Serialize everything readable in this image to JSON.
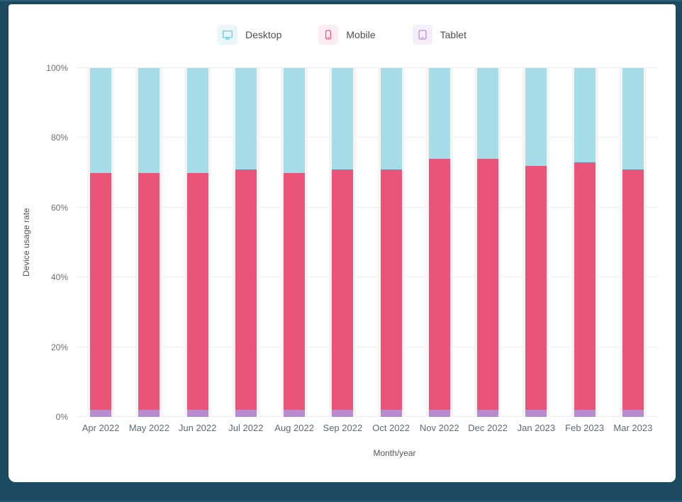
{
  "frame": {
    "border_color": "#1b4a61",
    "card_bg": "#ffffff"
  },
  "chart_data": {
    "type": "bar",
    "stacked": true,
    "title": "",
    "xlabel": "Month/year",
    "ylabel": "Device usage rate",
    "ylim": [
      0,
      100
    ],
    "grid": true,
    "legend_position": "top",
    "y_ticks": [
      0,
      20,
      40,
      60,
      80,
      100
    ],
    "y_tick_labels": [
      "0%",
      "20%",
      "40%",
      "60%",
      "80%",
      "100%"
    ],
    "categories": [
      "Apr 2022",
      "May 2022",
      "Jun 2022",
      "Jul 2022",
      "Aug 2022",
      "Sep 2022",
      "Oct 2022",
      "Nov 2022",
      "Dec 2022",
      "Jan 2023",
      "Feb 2023",
      "Mar 2023"
    ],
    "series": [
      {
        "name": "Tablet",
        "color": "#b78bce",
        "values": [
          2,
          2,
          2,
          2,
          2,
          2,
          2,
          2,
          2,
          2,
          2,
          2
        ]
      },
      {
        "name": "Mobile",
        "color": "#ea5478",
        "values": [
          68,
          68,
          68,
          69,
          68,
          69,
          69,
          72,
          72,
          70,
          71,
          69
        ]
      },
      {
        "name": "Desktop",
        "color": "#a6dbe8",
        "values": [
          30,
          30,
          30,
          29,
          30,
          29,
          29,
          26,
          26,
          28,
          27,
          29
        ]
      }
    ],
    "legend": [
      {
        "label": "Desktop",
        "color": "#6cc4da",
        "bg": "#e9f7fb",
        "icon": "desktop-icon"
      },
      {
        "label": "Mobile",
        "color": "#ea5478",
        "bg": "#fdedf2",
        "icon": "mobile-icon"
      },
      {
        "label": "Tablet",
        "color": "#b78bce",
        "bg": "#f4edfa",
        "icon": "tablet-icon"
      }
    ]
  }
}
